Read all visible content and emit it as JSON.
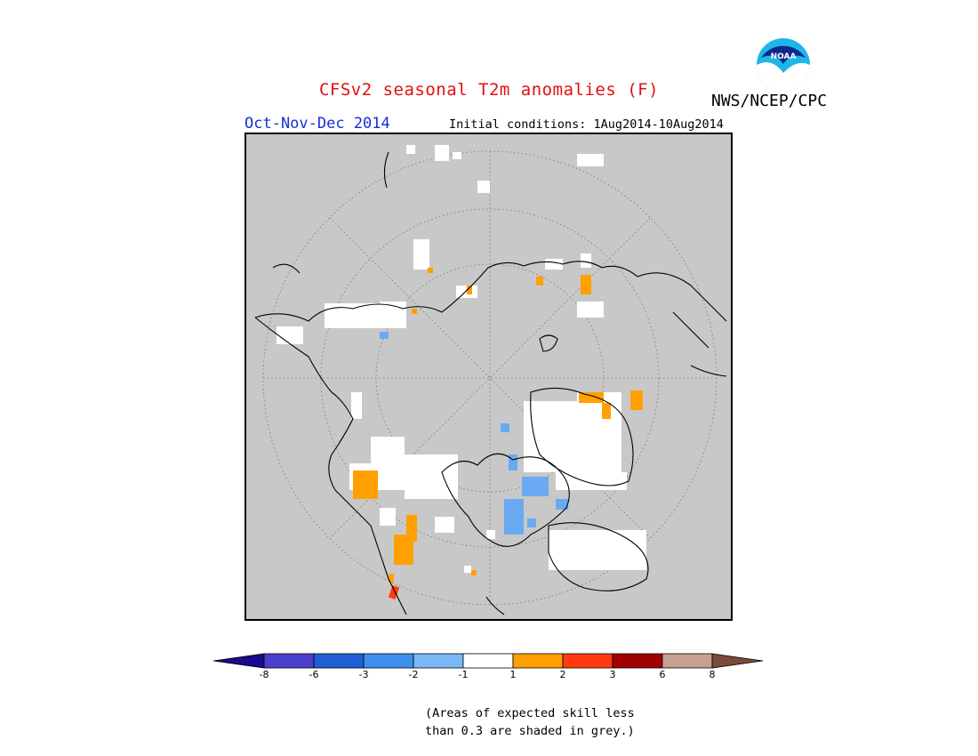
{
  "header": {
    "title": "CFSv2 seasonal T2m anomalies (F)",
    "agency": "NWS/NCEP/CPC",
    "logo_text": "NOAA",
    "season": "Oct-Nov-Dec 2014",
    "initial_conditions": "Initial conditions: 1Aug2014-10Aug2014"
  },
  "map": {
    "projection": "north-polar-stereographic",
    "background_color": "#c8c8c8",
    "masked_note": "grey = low skill"
  },
  "legend": {
    "colors": [
      "#1a0a8c",
      "#4b3fcf",
      "#1f5fd6",
      "#3f8fee",
      "#7ab8f5",
      "#ffffff",
      "#ffa000",
      "#ff3a10",
      "#a00000",
      "#c8a090",
      "#7a4a3a"
    ],
    "tick_labels": [
      "-8",
      "-6",
      "-3",
      "-2",
      "-1",
      "1",
      "2",
      "3",
      "6",
      "8"
    ]
  },
  "footnote": {
    "line1": "(Areas of expected skill less",
    "line2": "than 0.3 are shaded in grey.)"
  }
}
